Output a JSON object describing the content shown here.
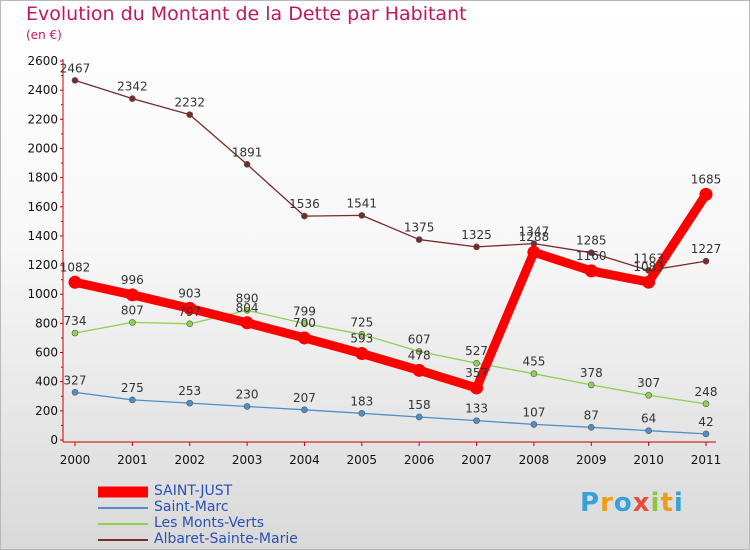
{
  "title": "Evolution du Montant de la Dette par Habitant",
  "subtitle": "(en €)",
  "logo": {
    "text": "Proxiti",
    "letters": [
      {
        "ch": "P",
        "color": "#3aa0d8"
      },
      {
        "ch": "r",
        "color": "#f39c12"
      },
      {
        "ch": "o",
        "color": "#3aa0d8"
      },
      {
        "ch": "x",
        "color": "#e74c3c"
      },
      {
        "ch": "i",
        "color": "#8cc63f"
      },
      {
        "ch": "t",
        "color": "#f39c12"
      },
      {
        "ch": "i",
        "color": "#3aa0d8"
      }
    ]
  },
  "chart_data": {
    "type": "line",
    "title": "Evolution du Montant de la Dette par Habitant",
    "subtitle": "(en €)",
    "x": [
      "2000",
      "2001",
      "2002",
      "2003",
      "2004",
      "2005",
      "2006",
      "2007",
      "2008",
      "2009",
      "2010",
      "2011"
    ],
    "ylim": [
      0,
      2600
    ],
    "yticks": [
      0,
      200,
      400,
      600,
      800,
      1000,
      1200,
      1400,
      1600,
      1800,
      2000,
      2200,
      2400,
      2600
    ],
    "grid": false,
    "legend_position": "bottom-left",
    "series": [
      {
        "name": "SAINT-JUST",
        "color": "#ff0000",
        "values": [
          1082,
          996,
          903,
          804,
          700,
          593,
          478,
          357,
          1288,
          1160,
          1083,
          1685
        ]
      },
      {
        "name": "Saint-Marc",
        "color": "#4f8fc8",
        "values": [
          327,
          275,
          253,
          230,
          207,
          183,
          158,
          133,
          107,
          87,
          64,
          42
        ]
      },
      {
        "name": "Les Monts-Verts",
        "color": "#8ed24f",
        "values": [
          734,
          807,
          797,
          890,
          799,
          725,
          607,
          527,
          455,
          378,
          307,
          248
        ]
      },
      {
        "name": "Albaret-Sainte-Marie",
        "color": "#7a2a2a",
        "values": [
          2467,
          2342,
          2232,
          1891,
          1536,
          1541,
          1375,
          1325,
          1347,
          1285,
          1163,
          1227
        ]
      }
    ]
  }
}
